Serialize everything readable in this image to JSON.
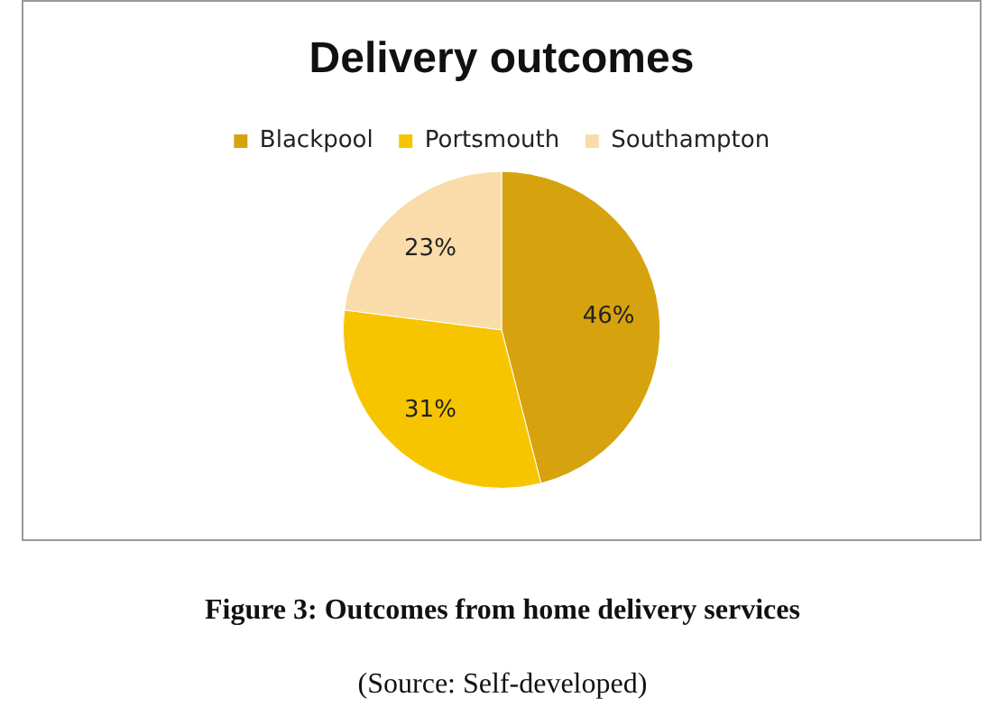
{
  "chart_data": {
    "type": "pie",
    "title": "Delivery outcomes",
    "categories": [
      "Blackpool",
      "Portsmouth",
      "Southampton"
    ],
    "values": [
      46,
      31,
      23
    ],
    "colors": [
      "#d6a20e",
      "#f7c500",
      "#f9dcaa"
    ],
    "value_labels": [
      "46%",
      "31%",
      "23%"
    ],
    "legend": "top",
    "annotations": [
      "Figure 3: Outcomes from home delivery services",
      "(Source: Self-developed)"
    ]
  }
}
